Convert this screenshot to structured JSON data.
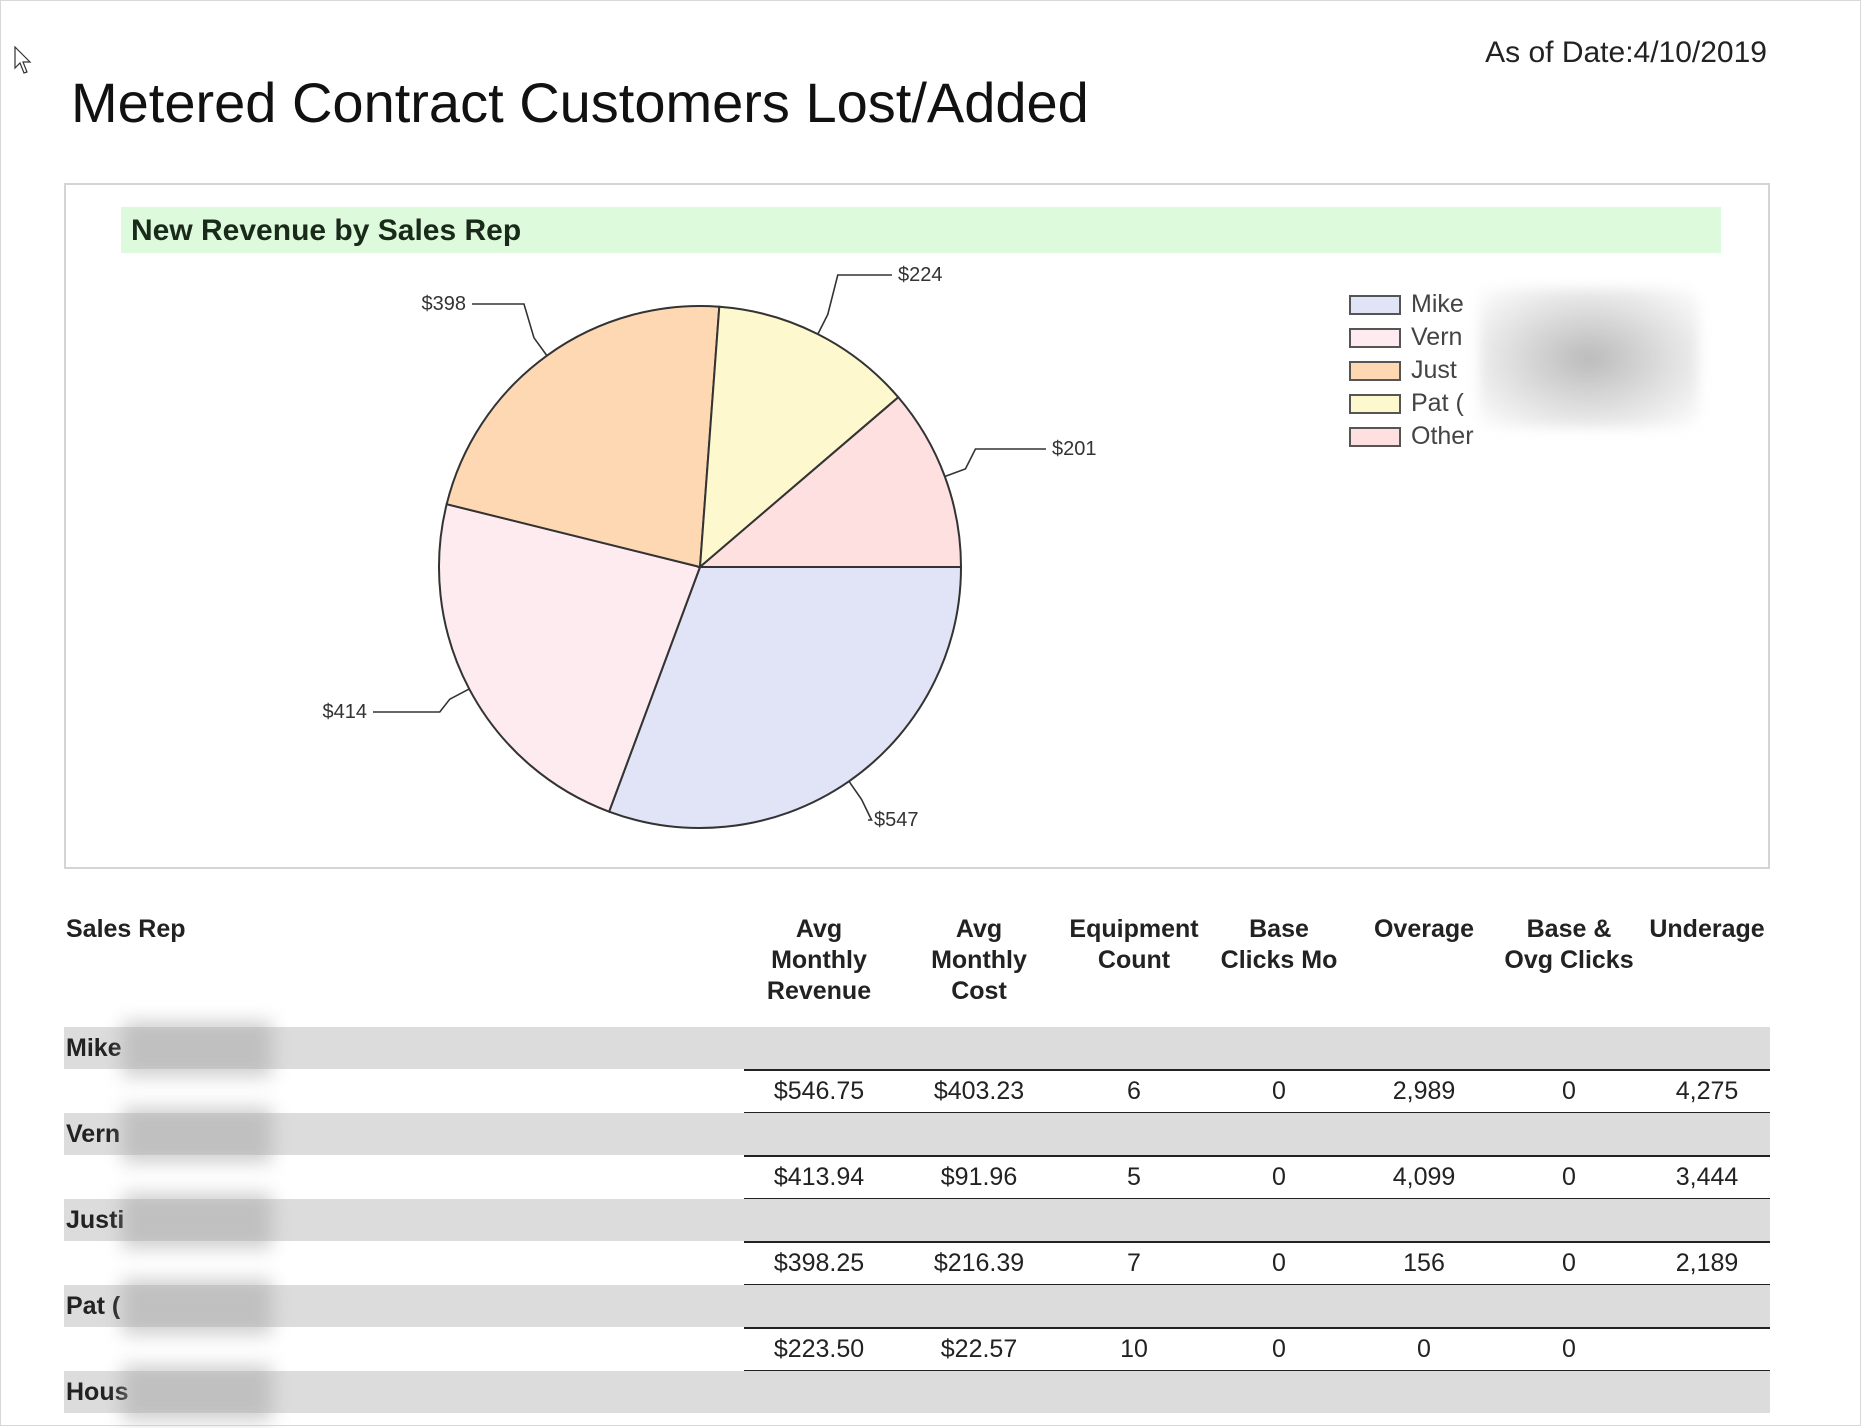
{
  "report": {
    "as_of": "As of Date:4/10/2019",
    "title": "Metered Contract Customers Lost/Added"
  },
  "chart_data": {
    "type": "pie",
    "title": "New Revenue by Sales Rep",
    "slices": [
      {
        "name": "Mike",
        "value": 547,
        "label": "$547",
        "color": "#e1e3f6"
      },
      {
        "name": "Vern",
        "value": 414,
        "label": "$414",
        "color": "#fdebf0"
      },
      {
        "name": "Just",
        "value": 398,
        "label": "$398",
        "color": "#fed8b3"
      },
      {
        "name": "Pat (",
        "value": 224,
        "label": "$224",
        "color": "#fdf8cd"
      },
      {
        "name": "Other",
        "value": 201,
        "label": "$201",
        "color": "#fde0df"
      }
    ],
    "legend_position": "right"
  },
  "legend": {
    "items": [
      {
        "label": "Mike",
        "color": "#e1e3f6"
      },
      {
        "label": "Vern",
        "color": "#fdebf0"
      },
      {
        "label": " Just",
        "color": "#fed8b3"
      },
      {
        "label": "Pat (",
        "color": "#fdf8cd"
      },
      {
        "label": "Other",
        "color": "#fde0df"
      }
    ]
  },
  "table": {
    "headers": {
      "sales_rep": "Sales Rep",
      "avg_monthly_revenue": [
        "Avg",
        "Monthly",
        "Revenue"
      ],
      "avg_monthly_cost": [
        "Avg",
        "Monthly",
        "Cost"
      ],
      "equipment_count": [
        "Equipment",
        "Count"
      ],
      "base_clicks_mo": [
        "Base",
        "Clicks Mo"
      ],
      "overage": [
        "Overage"
      ],
      "base_ovg_clicks": [
        "Base &",
        "Ovg Clicks"
      ],
      "underage": [
        "Underage"
      ]
    },
    "rows": [
      {
        "rep": "Mike",
        "revenue": "$546.75",
        "cost": "$403.23",
        "equipment": "6",
        "base_clicks": "0",
        "overage": "2,989",
        "base_ovg": "0",
        "underage": "4,275"
      },
      {
        "rep": "Vern",
        "revenue": "$413.94",
        "cost": "$91.96",
        "equipment": "5",
        "base_clicks": "0",
        "overage": "4,099",
        "base_ovg": "0",
        "underage": "3,444"
      },
      {
        "rep": "Justi",
        "revenue": "$398.25",
        "cost": "$216.39",
        "equipment": "7",
        "base_clicks": "0",
        "overage": "156",
        "base_ovg": "0",
        "underage": "2,189"
      },
      {
        "rep": "Pat (",
        "revenue": "$223.50",
        "cost": "$22.57",
        "equipment": "10",
        "base_clicks": "0",
        "overage": "0",
        "base_ovg": "0",
        "underage": ""
      },
      {
        "rep": "Hous"
      }
    ]
  }
}
